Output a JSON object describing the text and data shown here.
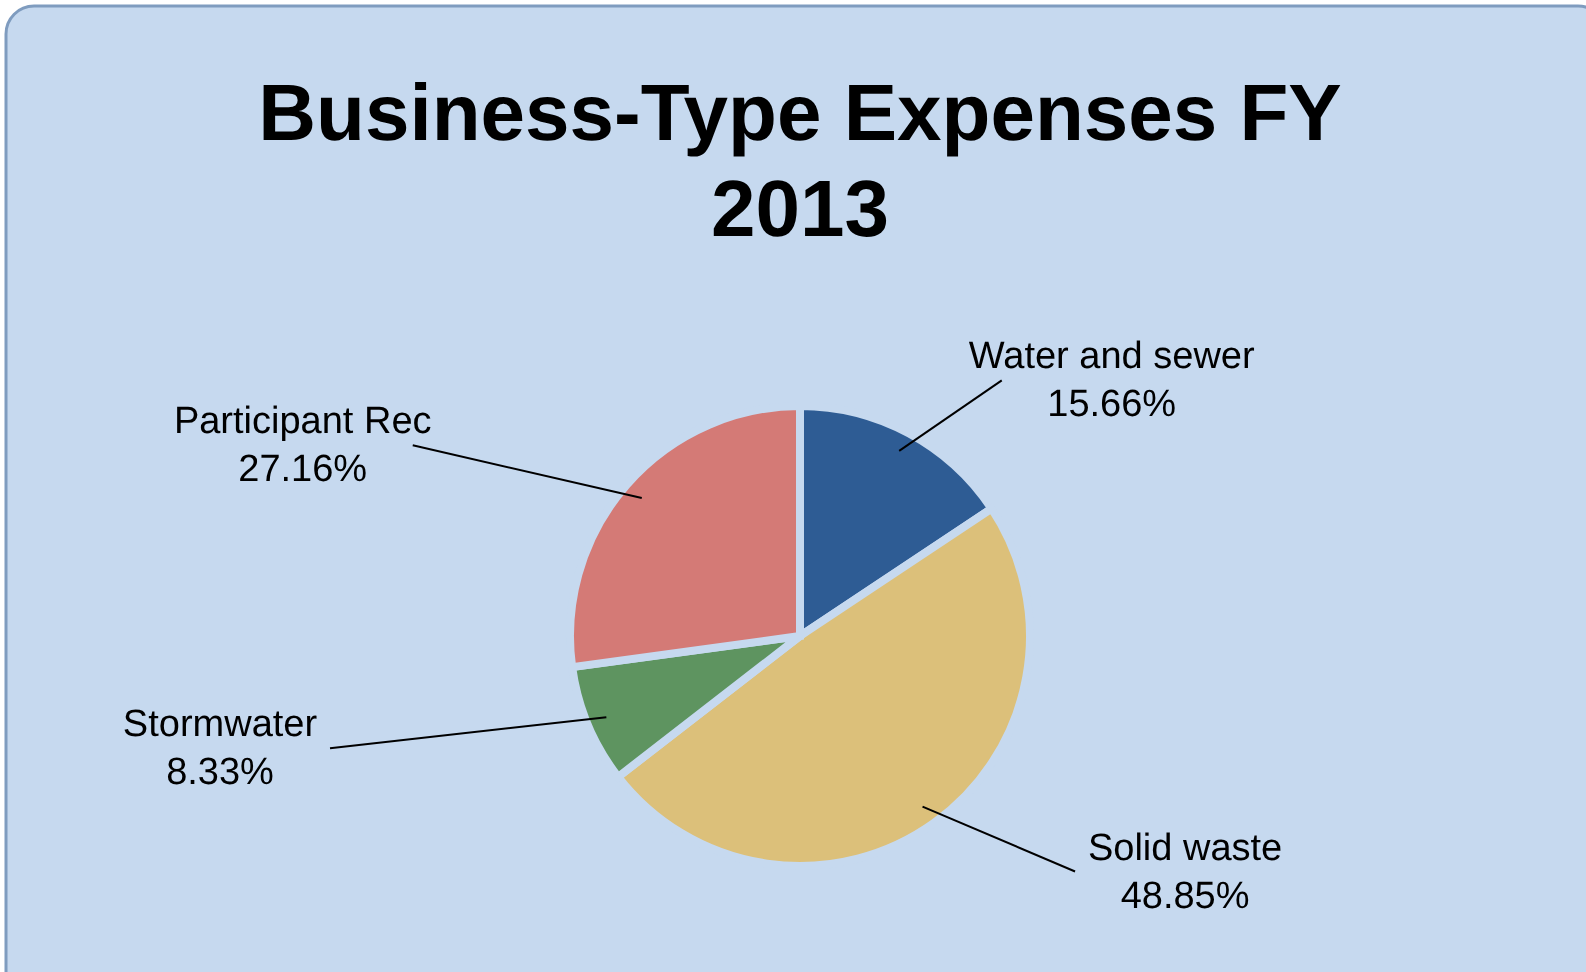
{
  "chart_data": {
    "type": "pie",
    "title": "Business-Type Expenses FY 2013",
    "categories": [
      "Water and sewer",
      "Solid waste",
      "Stormwater",
      "Participant Rec"
    ],
    "values": [
      15.66,
      48.85,
      8.33,
      27.16
    ],
    "colors": [
      "#2e5c94",
      "#dcc07a",
      "#5e9460",
      "#d47a76"
    ],
    "value_labels": [
      "15.66%",
      "48.85%",
      "8.33%",
      "27.16%"
    ]
  }
}
